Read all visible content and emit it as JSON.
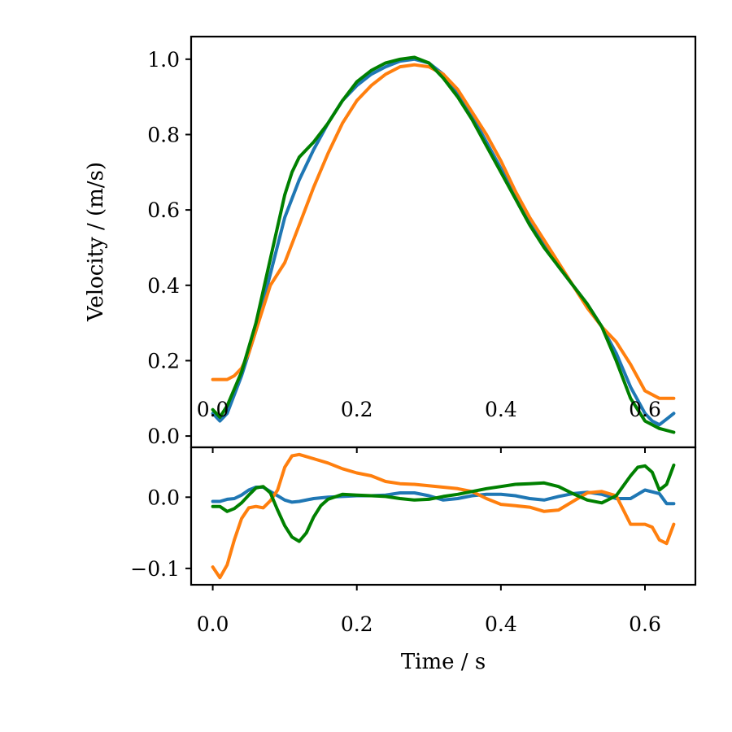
{
  "chart_data": [
    {
      "type": "line",
      "panel": "top",
      "title": "",
      "xlabel": "",
      "ylabel": "Velocity / (m/s)",
      "xlim": [
        -0.03,
        0.67
      ],
      "ylim": [
        -0.03,
        1.06
      ],
      "xticks": [
        0.0,
        0.2,
        0.4,
        0.6
      ],
      "xtick_labels": [
        "0.0",
        "0.2",
        "0.4",
        "0.6"
      ],
      "yticks": [
        0.0,
        0.2,
        0.4,
        0.6,
        0.8,
        1.0
      ],
      "ytick_labels": [
        "0.0",
        "0.2",
        "0.4",
        "0.6",
        "0.8",
        "1.0"
      ],
      "legend": "none",
      "grid": false,
      "series": [
        {
          "name": "series 1",
          "color": "#1f77b4",
          "x": [
            0,
            0.01,
            0.02,
            0.04,
            0.06,
            0.08,
            0.1,
            0.12,
            0.14,
            0.16,
            0.18,
            0.2,
            0.22,
            0.24,
            0.26,
            0.28,
            0.3,
            0.32,
            0.34,
            0.36,
            0.38,
            0.4,
            0.42,
            0.44,
            0.46,
            0.48,
            0.5,
            0.52,
            0.54,
            0.56,
            0.58,
            0.6,
            0.61,
            0.62,
            0.63,
            0.64
          ],
          "y": [
            0.06,
            0.04,
            0.06,
            0.16,
            0.28,
            0.43,
            0.58,
            0.68,
            0.76,
            0.83,
            0.89,
            0.93,
            0.96,
            0.98,
            0.995,
            1.0,
            0.99,
            0.96,
            0.91,
            0.85,
            0.78,
            0.71,
            0.64,
            0.57,
            0.51,
            0.45,
            0.4,
            0.35,
            0.29,
            0.22,
            0.13,
            0.06,
            0.04,
            0.03,
            0.045,
            0.06
          ]
        },
        {
          "name": "series 2",
          "color": "#ff7f0e",
          "x": [
            0,
            0.01,
            0.02,
            0.03,
            0.04,
            0.05,
            0.06,
            0.08,
            0.1,
            0.12,
            0.14,
            0.16,
            0.18,
            0.2,
            0.22,
            0.24,
            0.26,
            0.28,
            0.3,
            0.32,
            0.34,
            0.36,
            0.38,
            0.4,
            0.42,
            0.44,
            0.46,
            0.48,
            0.5,
            0.52,
            0.54,
            0.56,
            0.58,
            0.6,
            0.62,
            0.64
          ],
          "y": [
            0.15,
            0.15,
            0.15,
            0.16,
            0.18,
            0.22,
            0.28,
            0.4,
            0.46,
            0.56,
            0.66,
            0.75,
            0.83,
            0.89,
            0.93,
            0.96,
            0.98,
            0.985,
            0.98,
            0.96,
            0.92,
            0.86,
            0.8,
            0.73,
            0.65,
            0.58,
            0.52,
            0.46,
            0.4,
            0.34,
            0.29,
            0.25,
            0.19,
            0.12,
            0.1,
            0.1
          ]
        },
        {
          "name": "series 3",
          "color": "#008000",
          "x": [
            0,
            0.01,
            0.02,
            0.04,
            0.06,
            0.08,
            0.1,
            0.11,
            0.12,
            0.13,
            0.14,
            0.16,
            0.18,
            0.2,
            0.22,
            0.24,
            0.26,
            0.28,
            0.3,
            0.32,
            0.34,
            0.36,
            0.38,
            0.4,
            0.42,
            0.44,
            0.46,
            0.48,
            0.5,
            0.52,
            0.54,
            0.56,
            0.58,
            0.6,
            0.62,
            0.64
          ],
          "y": [
            0.07,
            0.05,
            0.08,
            0.17,
            0.3,
            0.47,
            0.64,
            0.7,
            0.74,
            0.76,
            0.78,
            0.83,
            0.89,
            0.94,
            0.97,
            0.99,
            1.0,
            1.005,
            0.99,
            0.95,
            0.9,
            0.84,
            0.77,
            0.7,
            0.63,
            0.56,
            0.5,
            0.45,
            0.4,
            0.35,
            0.29,
            0.2,
            0.1,
            0.04,
            0.02,
            0.01
          ]
        }
      ]
    },
    {
      "type": "line",
      "panel": "bottom",
      "title": "",
      "xlabel": "Time / s",
      "ylabel": "",
      "xlim": [
        -0.03,
        0.67
      ],
      "ylim": [
        -0.123,
        0.07
      ],
      "xticks": [
        0.0,
        0.2,
        0.4,
        0.6
      ],
      "xtick_labels": [
        "0.0",
        "0.2",
        "0.4",
        "0.6"
      ],
      "yticks": [
        0.0,
        -0.1
      ],
      "ytick_labels": [
        "0.0",
        "−0.1"
      ],
      "legend": "none",
      "grid": false,
      "series": [
        {
          "name": "series 1",
          "color": "#1f77b4",
          "x": [
            0,
            0.01,
            0.02,
            0.03,
            0.04,
            0.05,
            0.06,
            0.07,
            0.08,
            0.09,
            0.1,
            0.11,
            0.12,
            0.14,
            0.16,
            0.18,
            0.2,
            0.22,
            0.24,
            0.26,
            0.28,
            0.3,
            0.32,
            0.34,
            0.36,
            0.38,
            0.4,
            0.42,
            0.44,
            0.46,
            0.48,
            0.5,
            0.52,
            0.54,
            0.56,
            0.58,
            0.6,
            0.62,
            0.63,
            0.64
          ],
          "y": [
            -0.006,
            -0.006,
            -0.003,
            -0.002,
            0.003,
            0.01,
            0.014,
            0.014,
            0.008,
            0.002,
            -0.004,
            -0.007,
            -0.006,
            -0.002,
            0.0,
            0.001,
            0.002,
            0.002,
            0.003,
            0.006,
            0.006,
            0.002,
            -0.004,
            -0.002,
            0.002,
            0.004,
            0.004,
            0.002,
            -0.002,
            -0.004,
            0.001,
            0.005,
            0.007,
            0.004,
            -0.002,
            -0.002,
            0.01,
            0.005,
            -0.009,
            -0.009
          ]
        },
        {
          "name": "series 2",
          "color": "#ff7f0e",
          "x": [
            0,
            0.01,
            0.02,
            0.03,
            0.04,
            0.05,
            0.06,
            0.07,
            0.08,
            0.09,
            0.1,
            0.11,
            0.12,
            0.14,
            0.16,
            0.18,
            0.2,
            0.22,
            0.24,
            0.26,
            0.28,
            0.3,
            0.32,
            0.34,
            0.36,
            0.38,
            0.4,
            0.42,
            0.44,
            0.46,
            0.48,
            0.5,
            0.52,
            0.54,
            0.56,
            0.58,
            0.6,
            0.61,
            0.62,
            0.63,
            0.64
          ],
          "y": [
            -0.098,
            -0.113,
            -0.095,
            -0.06,
            -0.03,
            -0.015,
            -0.013,
            -0.015,
            -0.005,
            0.01,
            0.042,
            0.058,
            0.06,
            0.054,
            0.048,
            0.04,
            0.034,
            0.03,
            0.022,
            0.019,
            0.018,
            0.016,
            0.014,
            0.012,
            0.008,
            -0.002,
            -0.01,
            -0.012,
            -0.014,
            -0.02,
            -0.018,
            -0.006,
            0.006,
            0.008,
            0.002,
            -0.038,
            -0.038,
            -0.042,
            -0.06,
            -0.065,
            -0.038
          ]
        },
        {
          "name": "series 3",
          "color": "#008000",
          "x": [
            0,
            0.01,
            0.02,
            0.03,
            0.04,
            0.05,
            0.06,
            0.07,
            0.08,
            0.09,
            0.1,
            0.11,
            0.12,
            0.13,
            0.14,
            0.15,
            0.16,
            0.18,
            0.2,
            0.22,
            0.24,
            0.26,
            0.28,
            0.3,
            0.32,
            0.34,
            0.36,
            0.38,
            0.4,
            0.42,
            0.44,
            0.46,
            0.48,
            0.5,
            0.52,
            0.54,
            0.56,
            0.58,
            0.59,
            0.6,
            0.61,
            0.62,
            0.63,
            0.64
          ],
          "y": [
            -0.013,
            -0.013,
            -0.02,
            -0.016,
            -0.008,
            0.003,
            0.013,
            0.015,
            0.006,
            -0.018,
            -0.04,
            -0.056,
            -0.062,
            -0.05,
            -0.028,
            -0.012,
            -0.003,
            0.004,
            0.003,
            0.002,
            0.001,
            -0.002,
            -0.004,
            -0.003,
            0.001,
            0.004,
            0.008,
            0.012,
            0.015,
            0.018,
            0.019,
            0.02,
            0.015,
            0.005,
            -0.004,
            -0.008,
            0.002,
            0.03,
            0.042,
            0.044,
            0.035,
            0.01,
            0.018,
            0.045
          ]
        }
      ]
    }
  ]
}
